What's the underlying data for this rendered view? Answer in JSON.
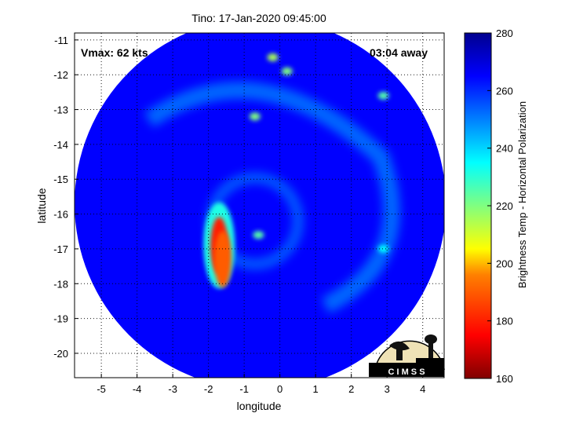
{
  "chart_data": {
    "type": "heatmap",
    "title": "Tino: 17-Jan-2020 09:45:00",
    "xlabel": "longitude",
    "ylabel": "latitude",
    "xlim": [
      -5.75,
      4.6
    ],
    "ylim": [
      -20.7,
      -10.8
    ],
    "x_ticks": [
      -5,
      -4,
      -3,
      -2,
      -1,
      0,
      1,
      2,
      3,
      4
    ],
    "y_ticks": [
      -11,
      -12,
      -13,
      -14,
      -15,
      -16,
      -17,
      -18,
      -19,
      -20
    ],
    "grid": true,
    "annotations": {
      "vmax": "Vmax: 62 kts",
      "time_away": "03:04 away"
    },
    "colorbar": {
      "label": "Brightness Temp - Horizontal Polarization",
      "range": [
        160,
        280
      ],
      "ticks": [
        280,
        260,
        240,
        220,
        200,
        180,
        160
      ],
      "colormap": "jet"
    },
    "swath": {
      "center": [
        -0.55,
        -15.7
      ],
      "radius_deg": 5.2,
      "background_temp": 265
    },
    "storm_center": [
      -0.7,
      -16.2
    ],
    "features": [
      {
        "name": "eyewall-warm-band",
        "lon": -1.7,
        "lat": -16.9,
        "temp": 180
      },
      {
        "name": "eyewall-inner",
        "lon": -1.6,
        "lat": -17.3,
        "temp": 190
      },
      {
        "name": "north-cell",
        "lon": -0.2,
        "lat": -11.5,
        "temp": 215
      },
      {
        "name": "north-cell-2",
        "lon": 0.2,
        "lat": -11.9,
        "temp": 220
      },
      {
        "name": "band-cell",
        "lon": -0.7,
        "lat": -13.2,
        "temp": 220
      },
      {
        "name": "ne-cell",
        "lon": 2.9,
        "lat": -12.6,
        "temp": 225
      },
      {
        "name": "east-cell",
        "lon": 2.9,
        "lat": -17.0,
        "temp": 235
      },
      {
        "name": "center-cell",
        "lon": -0.6,
        "lat": -16.6,
        "temp": 225
      }
    ],
    "logo_text": "C I M S S"
  }
}
